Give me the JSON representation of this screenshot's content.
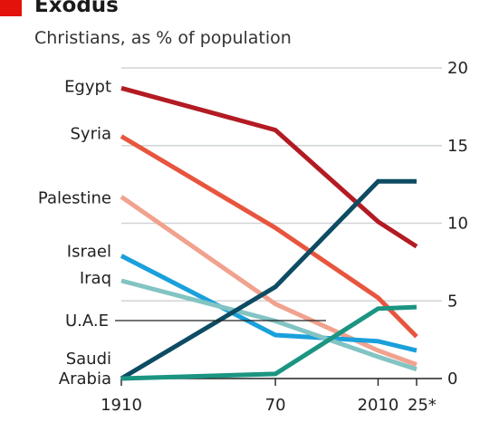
{
  "chart_data": {
    "type": "line",
    "title": "Exodus",
    "subtitle": "Christians, as % of population",
    "accent_color": "#e3120b",
    "x": [
      1910,
      1970,
      2010,
      2025
    ],
    "x_tick_labels": [
      "1910",
      "70",
      "2010",
      "25*"
    ],
    "ylim": [
      0,
      20
    ],
    "y_ticks": [
      0,
      5,
      10,
      15,
      20
    ],
    "y_axis_side": "right",
    "grid": true,
    "series": [
      {
        "name": "Egypt",
        "color": "#b31b23",
        "values": [
          18.7,
          16.0,
          10.1,
          8.5
        ]
      },
      {
        "name": "Syria",
        "color": "#e8553e",
        "values": [
          15.6,
          9.7,
          5.2,
          2.7
        ]
      },
      {
        "name": "Palestine",
        "color": "#f0a28e",
        "values": [
          11.7,
          4.8,
          1.8,
          0.9
        ]
      },
      {
        "name": "Israel",
        "color": "#1aa0db",
        "values": [
          7.9,
          2.8,
          2.4,
          1.8
        ]
      },
      {
        "name": "Iraq",
        "color": "#82c4c3",
        "values": [
          6.3,
          3.7,
          1.4,
          0.6
        ]
      },
      {
        "name": "U.A.E",
        "color": "#0d4c63",
        "values": [
          0,
          5.9,
          12.7,
          12.7
        ]
      },
      {
        "name": "Saudi Arabia",
        "label_lines": [
          "Saudi",
          "Arabia"
        ],
        "color": "#1b9582",
        "values": [
          0,
          0.3,
          4.5,
          4.6
        ]
      }
    ]
  }
}
